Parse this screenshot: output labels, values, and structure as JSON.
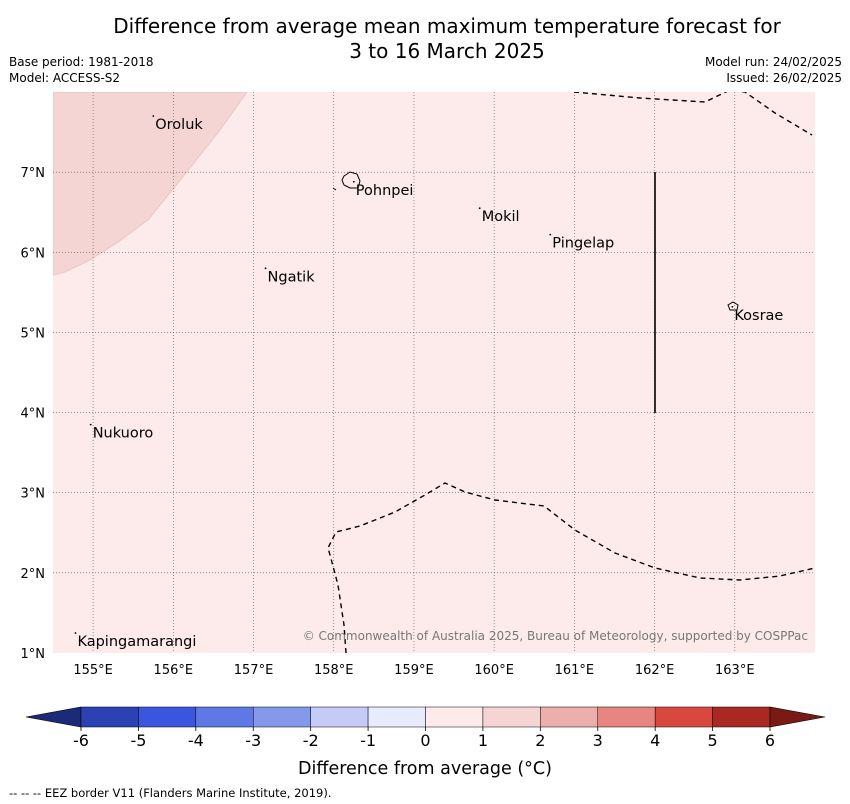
{
  "title": {
    "line1": "Difference from average mean maximum temperature forecast for",
    "line2": "3 to 16 March 2025"
  },
  "meta": {
    "base_period": "Base period: 1981-2018",
    "model": "Model: ACCESS-S2",
    "model_run": "Model run: 24/02/2025",
    "issued": "Issued: 26/02/2025"
  },
  "map": {
    "lon_range": [
      154.5,
      164
    ],
    "lat_range": [
      1,
      8
    ],
    "grid": "dotted",
    "background_category": "0 to 1",
    "lon_ticks": [
      "155°E",
      "156°E",
      "157°E",
      "158°E",
      "159°E",
      "160°E",
      "161°E",
      "162°E",
      "163°E"
    ],
    "lat_ticks": [
      "1°N",
      "2°N",
      "3°N",
      "4°N",
      "5°N",
      "6°N",
      "7°N"
    ],
    "places": [
      {
        "name": "Oroluk",
        "lon": 155.75,
        "lat": 7.7
      },
      {
        "name": "Pohnpei",
        "lon": 158.25,
        "lat": 6.88
      },
      {
        "name": "Mokil",
        "lon": 159.82,
        "lat": 6.55
      },
      {
        "name": "Pingelap",
        "lon": 160.7,
        "lat": 6.22
      },
      {
        "name": "Ngatik",
        "lon": 157.15,
        "lat": 5.8
      },
      {
        "name": "Kosrae",
        "lon": 162.97,
        "lat": 5.32
      },
      {
        "name": "Nukuoro",
        "lon": 154.97,
        "lat": 3.85
      },
      {
        "name": "Kapingamarangi",
        "lon": 154.78,
        "lat": 1.25
      }
    ],
    "copyright": "© Commonwealth of Australia 2025, Bureau of Meteorology, supported by COSPPac"
  },
  "legend": {
    "title": "Difference from average (°C)",
    "ticks": [
      "-6",
      "-5",
      "-4",
      "-3",
      "-2",
      "-1",
      "0",
      "1",
      "2",
      "3",
      "4",
      "5",
      "6"
    ],
    "colors": {
      "below_min": "#1c2a7a",
      "bins": [
        "#2a42b4",
        "#3a56df",
        "#5e78e6",
        "#8498ec",
        "#c3cbf6",
        "#e8ebfb",
        "#fcebea",
        "#f5d5d3",
        "#eeaeab",
        "#e78580",
        "#d8483f",
        "#aa2821"
      ],
      "above_max": "#7a1a15"
    }
  },
  "footnote": "--  --  -- EEZ border V11 (Flanders Marine Institute, 2019)."
}
